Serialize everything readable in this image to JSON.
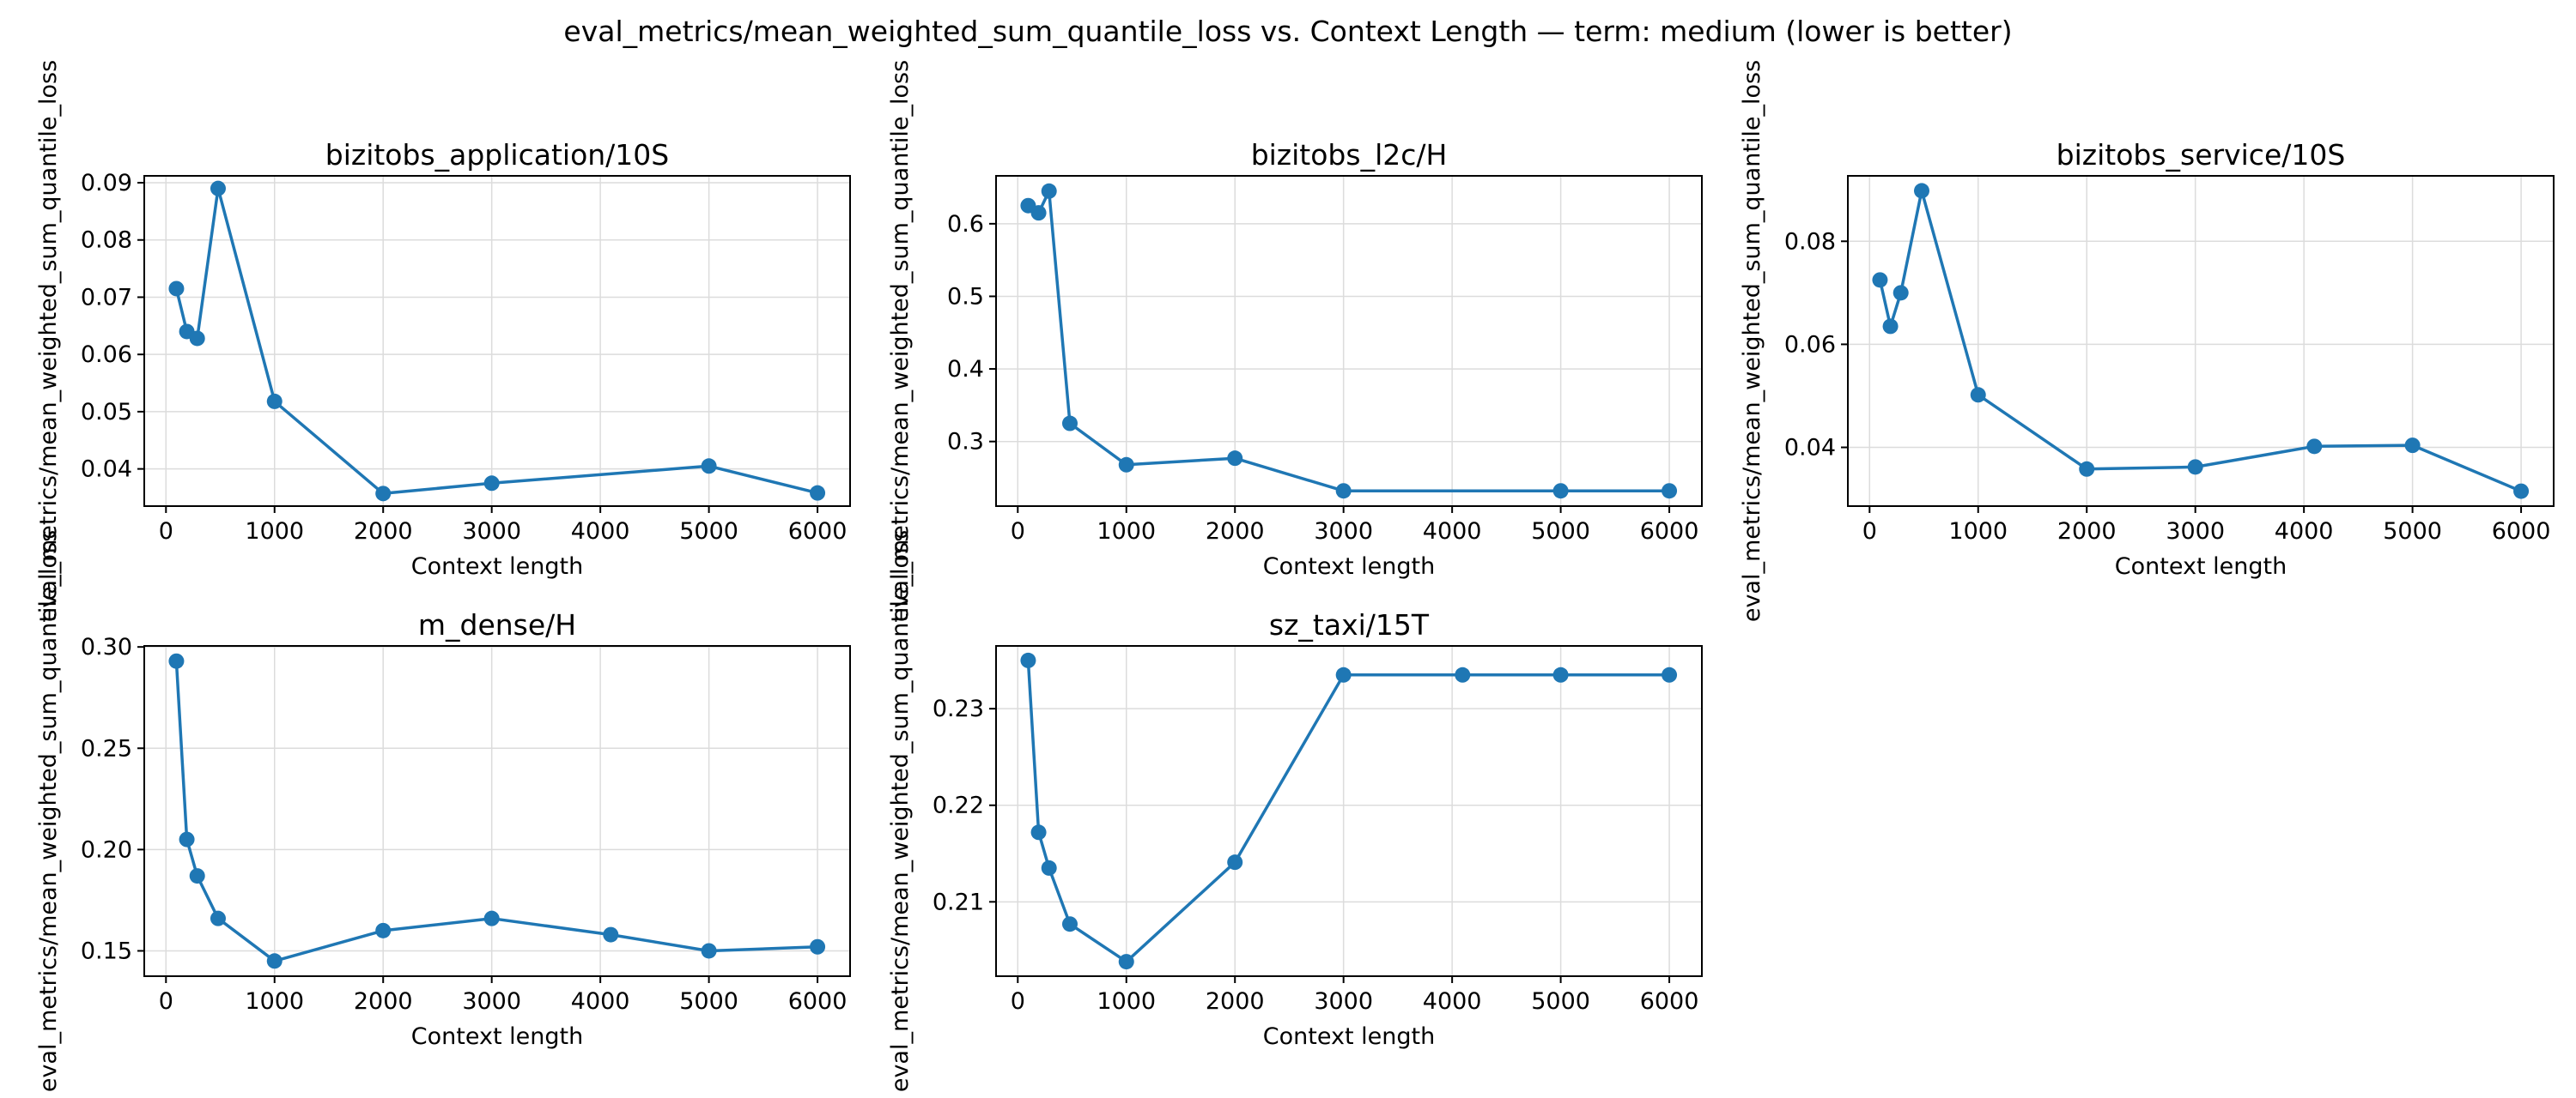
{
  "suptitle": "eval_metrics/mean_weighted_sum_quantile_loss vs. Context Length — term: medium (lower is better)",
  "style": {
    "line_color": "#1f77b4",
    "grid_color": "#dcdcdc"
  },
  "chart_data": [
    {
      "type": "line",
      "title": "bizitobs_application/10S",
      "xlabel": "Context length",
      "ylabel": "eval_metrics/mean_weighted_sum_quantile_loss",
      "x": [
        96,
        192,
        288,
        480,
        1000,
        2000,
        3000,
        5000,
        6000
      ],
      "series": [
        {
          "values": [
            0.0715,
            0.064,
            0.0628,
            0.089,
            0.0518,
            0.0357,
            0.0375,
            0.0405,
            0.0358
          ]
        }
      ],
      "xlim": [
        -200,
        6300
      ],
      "ylim": [
        0.0335,
        0.0912
      ],
      "xticks": [
        0,
        1000,
        2000,
        3000,
        4000,
        5000,
        6000
      ],
      "yticks": [
        0.04,
        0.05,
        0.06,
        0.07,
        0.08,
        0.09
      ],
      "ydecimals": 2,
      "grid": true
    },
    {
      "type": "line",
      "title": "bizitobs_l2c/H",
      "xlabel": "Context length",
      "ylabel": "eval_metrics/mean_weighted_sum_quantile_loss",
      "x": [
        96,
        192,
        288,
        480,
        1000,
        2000,
        3000,
        5000,
        6000
      ],
      "series": [
        {
          "values": [
            0.625,
            0.615,
            0.645,
            0.325,
            0.268,
            0.277,
            0.232,
            0.232,
            0.232
          ]
        }
      ],
      "xlim": [
        -200,
        6300
      ],
      "ylim": [
        0.211,
        0.666
      ],
      "xticks": [
        0,
        1000,
        2000,
        3000,
        4000,
        5000,
        6000
      ],
      "yticks": [
        0.3,
        0.4,
        0.5,
        0.6
      ],
      "ydecimals": 1,
      "grid": true
    },
    {
      "type": "line",
      "title": "bizitobs_service/10S",
      "xlabel": "Context length",
      "ylabel": "eval_metrics/mean_weighted_sum_quantile_loss",
      "x": [
        96,
        192,
        288,
        480,
        1000,
        2000,
        3000,
        4096,
        5000,
        6000
      ],
      "series": [
        {
          "values": [
            0.0725,
            0.0635,
            0.07,
            0.0898,
            0.0502,
            0.0358,
            0.0362,
            0.0402,
            0.0404,
            0.0315
          ]
        }
      ],
      "xlim": [
        -200,
        6300
      ],
      "ylim": [
        0.0286,
        0.0927
      ],
      "xticks": [
        0,
        1000,
        2000,
        3000,
        4000,
        5000,
        6000
      ],
      "yticks": [
        0.04,
        0.06,
        0.08
      ],
      "ydecimals": 2,
      "grid": true
    },
    {
      "type": "line",
      "title": "m_dense/H",
      "xlabel": "Context length",
      "ylabel": "eval_metrics/mean_weighted_sum_quantile_loss",
      "x": [
        96,
        192,
        288,
        480,
        1000,
        2000,
        3000,
        4096,
        5000,
        6000
      ],
      "series": [
        {
          "values": [
            0.293,
            0.205,
            0.187,
            0.166,
            0.145,
            0.16,
            0.166,
            0.158,
            0.15,
            0.152
          ]
        }
      ],
      "xlim": [
        -200,
        6300
      ],
      "ylim": [
        0.1375,
        0.3005
      ],
      "xticks": [
        0,
        1000,
        2000,
        3000,
        4000,
        5000,
        6000
      ],
      "yticks": [
        0.15,
        0.2,
        0.25,
        0.3
      ],
      "ydecimals": 2,
      "grid": true
    },
    {
      "type": "line",
      "title": "sz_taxi/15T",
      "xlabel": "Context length",
      "ylabel": "eval_metrics/mean_weighted_sum_quantile_loss",
      "x": [
        96,
        192,
        288,
        480,
        1000,
        2000,
        3000,
        4096,
        5000,
        6000
      ],
      "series": [
        {
          "values": [
            0.235,
            0.2172,
            0.2135,
            0.2077,
            0.2038,
            0.2141,
            0.2335,
            0.2335,
            0.2335,
            0.2335
          ]
        }
      ],
      "xlim": [
        -200,
        6300
      ],
      "ylim": [
        0.2023,
        0.2365
      ],
      "xticks": [
        0,
        1000,
        2000,
        3000,
        4000,
        5000,
        6000
      ],
      "yticks": [
        0.21,
        0.22,
        0.23
      ],
      "ydecimals": 2,
      "grid": true
    }
  ]
}
